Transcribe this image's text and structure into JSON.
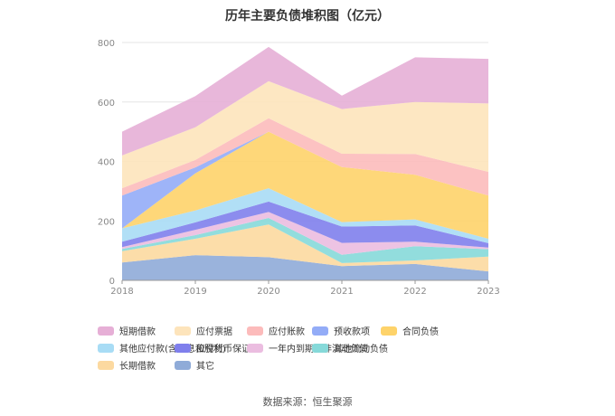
{
  "chart_data": {
    "type": "area",
    "title": "历年主要负债堆积图（亿元）",
    "x": [
      "2018",
      "2019",
      "2020",
      "2021",
      "2022",
      "2023"
    ],
    "ylim": [
      0,
      800
    ],
    "yticks": [
      "0",
      "200",
      "400",
      "600",
      "800"
    ],
    "stacked": true,
    "grid": true,
    "legend_position": "bottom",
    "series": [
      {
        "name": "其它",
        "color": "#8fabd8",
        "values": [
          60,
          85,
          78,
          48,
          55,
          30
        ]
      },
      {
        "name": "长期借款",
        "color": "#fcd9a0",
        "values": [
          38,
          55,
          110,
          10,
          12,
          50
        ]
      },
      {
        "name": "其他流动负债",
        "color": "#86d9d9",
        "values": [
          8,
          12,
          22,
          28,
          48,
          25
        ]
      },
      {
        "name": "一年内到期的非流动负债",
        "color": "#ebbde0",
        "values": [
          6,
          18,
          20,
          40,
          15,
          5
        ]
      },
      {
        "name": "应付货币保证金",
        "color": "#7f7fec",
        "values": [
          18,
          25,
          35,
          55,
          55,
          15
        ]
      },
      {
        "name": "其他应付款(含利息和股利)",
        "color": "#a8dcf5",
        "values": [
          45,
          40,
          45,
          15,
          20,
          15
        ]
      },
      {
        "name": "合同负债",
        "color": "#fed36a",
        "values": [
          0,
          125,
          190,
          185,
          150,
          145
        ]
      },
      {
        "name": "预收款项",
        "color": "#93acf7",
        "values": [
          110,
          20,
          0,
          0,
          0,
          0
        ]
      },
      {
        "name": "应付账款",
        "color": "#fcbbbb",
        "values": [
          25,
          25,
          45,
          45,
          70,
          80
        ]
      },
      {
        "name": "应付票据",
        "color": "#fde4bb",
        "values": [
          110,
          110,
          125,
          150,
          175,
          230
        ]
      },
      {
        "name": "短期借款",
        "color": "#e6afd6",
        "values": [
          80,
          105,
          115,
          45,
          150,
          150
        ]
      }
    ]
  },
  "legend_rows": [
    [
      "短期借款",
      "应付票据",
      "应付账款",
      "预收款项",
      "合同负债"
    ],
    [
      "其他应付款(含利息和股利)",
      "应付货币保证金",
      "一年内到期的非流动负债",
      "其他流动负债"
    ],
    [
      "长期借款",
      "其它"
    ]
  ],
  "source_text": "数据来源：恒生聚源"
}
